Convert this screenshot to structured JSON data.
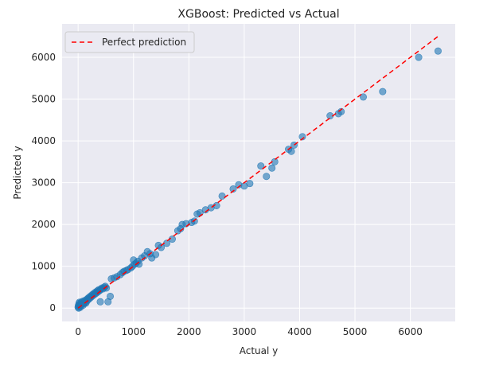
{
  "chart_data": {
    "type": "scatter",
    "title": "XGBoost: Predicted vs Actual",
    "xlabel": "Actual y",
    "ylabel": "Predicted y",
    "xlim": [
      -290,
      6810
    ],
    "ylim": [
      -320,
      6800
    ],
    "xticks": [
      0,
      1000,
      2000,
      3000,
      4000,
      5000,
      6000
    ],
    "yticks": [
      0,
      1000,
      2000,
      3000,
      4000,
      5000,
      6000
    ],
    "grid": true,
    "legend_position": "top-left",
    "colors": {
      "plot_background": "#eaeaf2",
      "grid": "#ffffff",
      "points": "#1f77b4",
      "reference_line": "#ff0000"
    },
    "reference_line": {
      "name": "Perfect prediction",
      "style": "dashed",
      "from": [
        0,
        0
      ],
      "to": [
        6500,
        6500
      ]
    },
    "points": [
      [
        0,
        20
      ],
      [
        5,
        60
      ],
      [
        10,
        0
      ],
      [
        15,
        110
      ],
      [
        20,
        40
      ],
      [
        25,
        140
      ],
      [
        30,
        80
      ],
      [
        40,
        20
      ],
      [
        45,
        100
      ],
      [
        50,
        60
      ],
      [
        60,
        140
      ],
      [
        70,
        90
      ],
      [
        80,
        160
      ],
      [
        90,
        70
      ],
      [
        100,
        130
      ],
      [
        110,
        110
      ],
      [
        120,
        180
      ],
      [
        130,
        150
      ],
      [
        140,
        120
      ],
      [
        150,
        200
      ],
      [
        160,
        170
      ],
      [
        175,
        230
      ],
      [
        190,
        210
      ],
      [
        200,
        260
      ],
      [
        215,
        240
      ],
      [
        230,
        290
      ],
      [
        240,
        270
      ],
      [
        255,
        320
      ],
      [
        270,
        300
      ],
      [
        285,
        350
      ],
      [
        300,
        330
      ],
      [
        315,
        380
      ],
      [
        330,
        360
      ],
      [
        345,
        410
      ],
      [
        360,
        390
      ],
      [
        375,
        440
      ],
      [
        390,
        420
      ],
      [
        400,
        150
      ],
      [
        410,
        450
      ],
      [
        430,
        480
      ],
      [
        450,
        460
      ],
      [
        470,
        500
      ],
      [
        490,
        520
      ],
      [
        510,
        480
      ],
      [
        540,
        150
      ],
      [
        580,
        280
      ],
      [
        600,
        700
      ],
      [
        650,
        720
      ],
      [
        700,
        750
      ],
      [
        760,
        800
      ],
      [
        800,
        850
      ],
      [
        830,
        880
      ],
      [
        870,
        900
      ],
      [
        900,
        920
      ],
      [
        950,
        960
      ],
      [
        980,
        1000
      ],
      [
        1000,
        1150
      ],
      [
        1020,
        1050
      ],
      [
        1050,
        1080
      ],
      [
        1080,
        1120
      ],
      [
        1100,
        1050
      ],
      [
        1150,
        1200
      ],
      [
        1200,
        1250
      ],
      [
        1250,
        1350
      ],
      [
        1300,
        1300
      ],
      [
        1330,
        1200
      ],
      [
        1400,
        1280
      ],
      [
        1450,
        1500
      ],
      [
        1500,
        1450
      ],
      [
        1600,
        1550
      ],
      [
        1700,
        1650
      ],
      [
        1800,
        1850
      ],
      [
        1850,
        1900
      ],
      [
        1880,
        2000
      ],
      [
        1950,
        2020
      ],
      [
        2050,
        2050
      ],
      [
        2100,
        2080
      ],
      [
        2150,
        2250
      ],
      [
        2200,
        2280
      ],
      [
        2300,
        2350
      ],
      [
        2400,
        2400
      ],
      [
        2500,
        2450
      ],
      [
        2600,
        2680
      ],
      [
        2800,
        2850
      ],
      [
        2900,
        2950
      ],
      [
        3000,
        2920
      ],
      [
        3100,
        2980
      ],
      [
        3300,
        3400
      ],
      [
        3400,
        3150
      ],
      [
        3500,
        3350
      ],
      [
        3550,
        3500
      ],
      [
        3800,
        3800
      ],
      [
        3850,
        3750
      ],
      [
        3900,
        3900
      ],
      [
        4050,
        4100
      ],
      [
        4550,
        4600
      ],
      [
        4700,
        4650
      ],
      [
        4750,
        4700
      ],
      [
        5150,
        5050
      ],
      [
        5500,
        5180
      ],
      [
        6150,
        6000
      ],
      [
        6500,
        6150
      ]
    ]
  }
}
